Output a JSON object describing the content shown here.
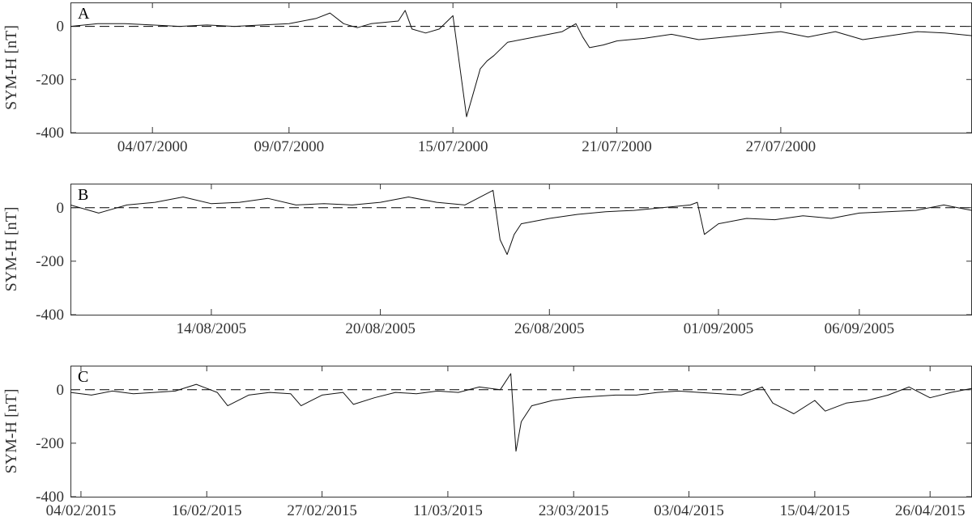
{
  "chart_data": [
    {
      "type": "line",
      "panel": "A",
      "ylabel": "SYM-H [nT]",
      "ylim": [
        -400,
        90
      ],
      "yticks": [
        0,
        -200,
        -400
      ],
      "xlim": [
        "2000-07-01",
        "2000-08-03"
      ],
      "xticks": [
        {
          "date": "2000-07-04",
          "label": "04/07/2000"
        },
        {
          "date": "2000-07-09",
          "label": "09/07/2000"
        },
        {
          "date": "2000-07-15",
          "label": "15/07/2000"
        },
        {
          "date": "2000-07-21",
          "label": "21/07/2000"
        },
        {
          "date": "2000-07-27",
          "label": "27/07/2000"
        }
      ],
      "reference_line": 0,
      "series": [
        {
          "x": [
            "2000-07-01",
            "2000-07-02",
            "2000-07-03",
            "2000-07-04",
            "2000-07-05",
            "2000-07-06",
            "2000-07-07",
            "2000-07-08",
            "2000-07-09",
            "2000-07-10",
            "2000-07-10 12:00",
            "2000-07-11",
            "2000-07-11 12:00",
            "2000-07-12",
            "2000-07-13",
            "2000-07-13 06:00",
            "2000-07-13 12:00",
            "2000-07-14",
            "2000-07-14 12:00",
            "2000-07-15 00:00",
            "2000-07-15 06:00",
            "2000-07-15 12:00",
            "2000-07-15 18:00",
            "2000-07-16 00:00",
            "2000-07-16 06:00",
            "2000-07-16 12:00",
            "2000-07-17",
            "2000-07-18",
            "2000-07-19",
            "2000-07-19 12:00",
            "2000-07-19 18:00",
            "2000-07-20",
            "2000-07-20 12:00",
            "2000-07-21",
            "2000-07-22",
            "2000-07-23",
            "2000-07-24",
            "2000-07-25",
            "2000-07-26",
            "2000-07-27",
            "2000-07-28",
            "2000-07-29",
            "2000-07-30",
            "2000-07-31",
            "2000-08-01",
            "2000-08-02",
            "2000-08-03"
          ],
          "y": [
            0,
            10,
            10,
            5,
            0,
            5,
            0,
            5,
            10,
            30,
            50,
            10,
            -5,
            10,
            20,
            60,
            -10,
            -25,
            -10,
            40,
            -150,
            -340,
            -250,
            -160,
            -130,
            -110,
            -60,
            -40,
            -20,
            10,
            -40,
            -80,
            -70,
            -55,
            -45,
            -30,
            -50,
            -40,
            -30,
            -20,
            -40,
            -20,
            -50,
            -35,
            -20,
            -25,
            -35
          ]
        }
      ]
    },
    {
      "type": "line",
      "panel": "B",
      "ylabel": "SYM-H [nT]",
      "ylim": [
        -400,
        90
      ],
      "yticks": [
        0,
        -200,
        -400
      ],
      "xlim": [
        "2005-08-09",
        "2005-09-10"
      ],
      "xticks": [
        {
          "date": "2005-08-14",
          "label": "14/08/2005"
        },
        {
          "date": "2005-08-20",
          "label": "20/08/2005"
        },
        {
          "date": "2005-08-26",
          "label": "26/08/2005"
        },
        {
          "date": "2005-09-01",
          "label": "01/09/2005"
        },
        {
          "date": "2005-09-06",
          "label": "06/09/2005"
        }
      ],
      "reference_line": 0,
      "series": [
        {
          "x": [
            "2005-08-09",
            "2005-08-10",
            "2005-08-11",
            "2005-08-12",
            "2005-08-13",
            "2005-08-14",
            "2005-08-15",
            "2005-08-16",
            "2005-08-17",
            "2005-08-18",
            "2005-08-19",
            "2005-08-20",
            "2005-08-21",
            "2005-08-22",
            "2005-08-23",
            "2005-08-24",
            "2005-08-24 06:00",
            "2005-08-24 12:00",
            "2005-08-24 18:00",
            "2005-08-25",
            "2005-08-26",
            "2005-08-27",
            "2005-08-28",
            "2005-08-29",
            "2005-08-30",
            "2005-08-31",
            "2005-08-31 06:00",
            "2005-08-31 12:00",
            "2005-09-01",
            "2005-09-02",
            "2005-09-03",
            "2005-09-04",
            "2005-09-05",
            "2005-09-06",
            "2005-09-07",
            "2005-09-08",
            "2005-09-09",
            "2005-09-10"
          ],
          "y": [
            10,
            -20,
            10,
            20,
            40,
            15,
            20,
            35,
            10,
            15,
            10,
            20,
            40,
            20,
            10,
            65,
            -120,
            -175,
            -100,
            -60,
            -40,
            -25,
            -15,
            -10,
            0,
            10,
            20,
            -100,
            -60,
            -40,
            -45,
            -30,
            -40,
            -20,
            -15,
            -10,
            10,
            -10
          ]
        }
      ]
    },
    {
      "type": "line",
      "panel": "C",
      "ylabel": "SYM-H [nT]",
      "ylim": [
        -400,
        90
      ],
      "yticks": [
        0,
        -200,
        -400
      ],
      "xlim": [
        "2015-02-03",
        "2015-04-30"
      ],
      "xticks": [
        {
          "date": "2015-02-04",
          "label": "04/02/2015"
        },
        {
          "date": "2015-02-16",
          "label": "16/02/2015"
        },
        {
          "date": "2015-02-27",
          "label": "27/02/2015"
        },
        {
          "date": "2015-03-11",
          "label": "11/03/2015"
        },
        {
          "date": "2015-03-23",
          "label": "23/03/2015"
        },
        {
          "date": "2015-04-03",
          "label": "03/04/2015"
        },
        {
          "date": "2015-04-15",
          "label": "15/04/2015"
        },
        {
          "date": "2015-04-26",
          "label": "26/04/2015"
        }
      ],
      "reference_line": 0,
      "series": [
        {
          "x": [
            "2015-02-03",
            "2015-02-05",
            "2015-02-07",
            "2015-02-09",
            "2015-02-11",
            "2015-02-13",
            "2015-02-15",
            "2015-02-17",
            "2015-02-18",
            "2015-02-20",
            "2015-02-22",
            "2015-02-24",
            "2015-02-25",
            "2015-02-27",
            "2015-03-01",
            "2015-03-02",
            "2015-03-04",
            "2015-03-06",
            "2015-03-08",
            "2015-03-10",
            "2015-03-12",
            "2015-03-14",
            "2015-03-16",
            "2015-03-17",
            "2015-03-17 12:00",
            "2015-03-18",
            "2015-03-19",
            "2015-03-21",
            "2015-03-23",
            "2015-03-25",
            "2015-03-27",
            "2015-03-29",
            "2015-03-31",
            "2015-04-02",
            "2015-04-04",
            "2015-04-06",
            "2015-04-08",
            "2015-04-10",
            "2015-04-11",
            "2015-04-13",
            "2015-04-15",
            "2015-04-16",
            "2015-04-18",
            "2015-04-20",
            "2015-04-22",
            "2015-04-24",
            "2015-04-26",
            "2015-04-28",
            "2015-04-30"
          ],
          "y": [
            -10,
            -20,
            -5,
            -15,
            -10,
            -5,
            20,
            -10,
            -60,
            -20,
            -10,
            -15,
            -60,
            -20,
            -10,
            -55,
            -30,
            -10,
            -15,
            -5,
            -10,
            10,
            0,
            60,
            -230,
            -120,
            -60,
            -40,
            -30,
            -25,
            -20,
            -20,
            -10,
            -5,
            -10,
            -15,
            -20,
            10,
            -50,
            -90,
            -40,
            -80,
            -50,
            -40,
            -20,
            10,
            -30,
            -10,
            5
          ]
        }
      ]
    }
  ]
}
